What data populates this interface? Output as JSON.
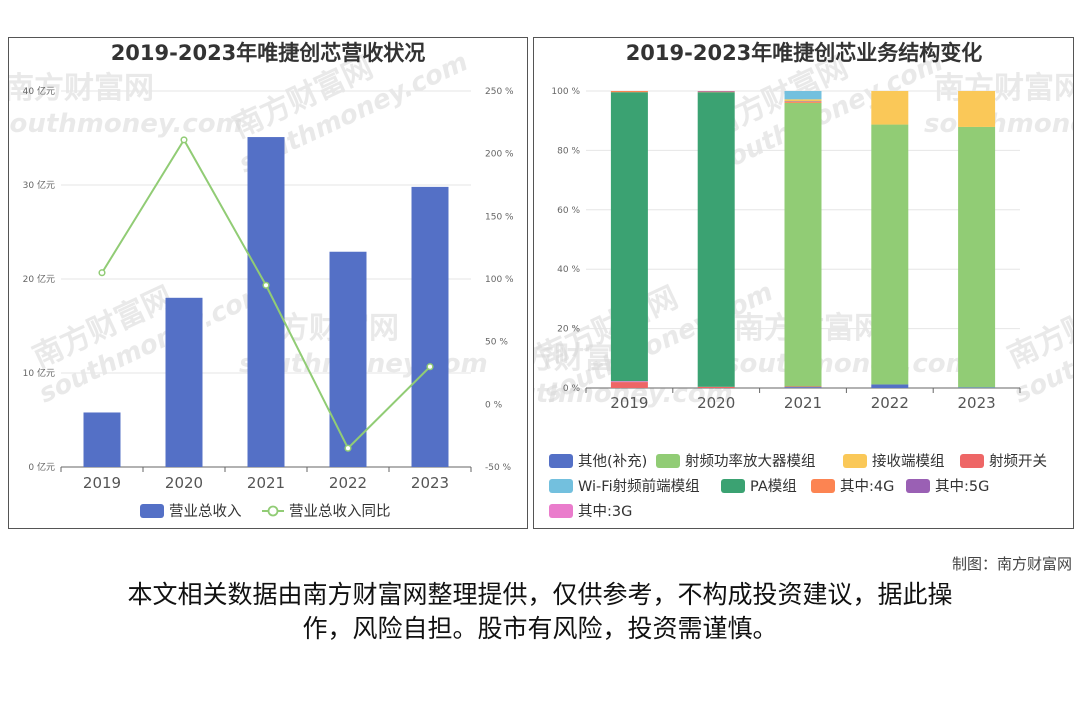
{
  "chart_data": [
    {
      "type": "bar",
      "title": "2019-2023年唯捷创芯营收状况",
      "categories": [
        "2019",
        "2020",
        "2021",
        "2022",
        "2023"
      ],
      "series": [
        {
          "name": "营业总收入",
          "type": "bar",
          "axis": "left",
          "values": [
            5.8,
            18.0,
            35.1,
            22.9,
            29.8
          ],
          "color": "#5470c6"
        },
        {
          "name": "营业总收入同比",
          "type": "line",
          "axis": "right",
          "values": [
            105,
            211,
            95,
            -35,
            30
          ],
          "color": "#91cc75"
        }
      ],
      "y_left": {
        "ticks": [
          "0 亿元",
          "10 亿元",
          "20 亿元",
          "30 亿元",
          "40 亿元"
        ],
        "range": [
          0,
          40
        ]
      },
      "y_right": {
        "ticks": [
          "-50 %",
          "0 %",
          "50 %",
          "100 %",
          "150 %",
          "200 %",
          "250 %"
        ],
        "range": [
          -50,
          250
        ]
      },
      "grid": true,
      "legend_position": "bottom"
    },
    {
      "type": "bar",
      "stacked": true,
      "title": "2019-2023年唯捷创芯业务结构变化",
      "categories": [
        "2019",
        "2020",
        "2021",
        "2022",
        "2023"
      ],
      "series": [
        {
          "name": "其他(补充)",
          "values": [
            0,
            0,
            0.3,
            1.2,
            0.2
          ],
          "color": "#5470c6"
        },
        {
          "name": "射频功率放大器模组",
          "values": [
            0,
            0,
            95.5,
            87.5,
            87.7
          ],
          "color": "#91cc75"
        },
        {
          "name": "接收端模组",
          "values": [
            0,
            0,
            0.7,
            11.3,
            12.1
          ],
          "color": "#fac858"
        },
        {
          "name": "射频开关",
          "values": [
            2.0,
            0.4,
            0.2,
            0,
            0
          ],
          "color": "#ee6666"
        },
        {
          "name": "Wi-Fi射频前端模组",
          "values": [
            0,
            0,
            2.8,
            0,
            0
          ],
          "color": "#73c0de"
        },
        {
          "name": "PA模组",
          "values": [
            97.3,
            99.2,
            0,
            0,
            0
          ],
          "color": "#3ba272"
        },
        {
          "name": "其中:4G",
          "values": [
            0.4,
            0.2,
            0.3,
            0,
            0
          ],
          "color": "#fc8452"
        },
        {
          "name": "其中:5G",
          "values": [
            0,
            0.2,
            0.2,
            0,
            0
          ],
          "color": "#9a60b4"
        },
        {
          "name": "其中:3G",
          "values": [
            0.3,
            0,
            0,
            0,
            0
          ],
          "color": "#ea7ccc"
        }
      ],
      "y_ticks": [
        "0 %",
        "20 %",
        "40 %",
        "60 %",
        "80 %",
        "100 %"
      ],
      "ylim": [
        0,
        100
      ],
      "grid": true,
      "legend_position": "bottom"
    }
  ],
  "watermark": {
    "cn": "南方财富网",
    "en": "southmoney.com"
  },
  "credit": "制图：南方财富网",
  "footer": {
    "line1": "本文相关数据由南方财富网整理提供，仅供参考，不构成投资建议，据此操",
    "line2": "作，风险自担。股市有风险，投资需谨慎。"
  }
}
